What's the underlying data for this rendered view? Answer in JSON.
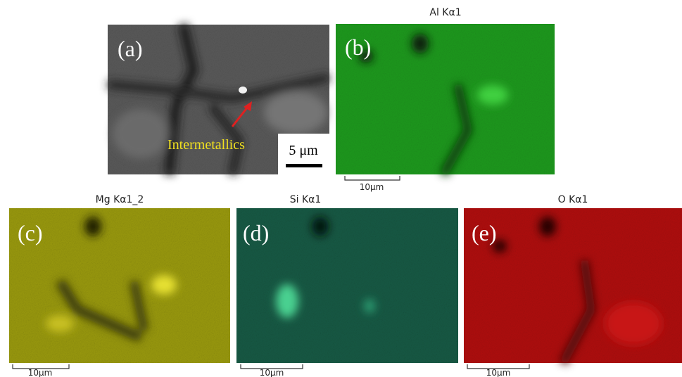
{
  "panels": [
    {
      "label": "(a)",
      "annotation": "Intermetallics",
      "scale_bar": "5 μm"
    },
    {
      "label": "(b)",
      "title": "Al Kα1",
      "scale_bar": "10μm"
    },
    {
      "label": "(c)",
      "title": "Mg Kα1_2",
      "scale_bar": "10μm"
    },
    {
      "label": "(d)",
      "title": "Si Kα1",
      "scale_bar": "10μm"
    },
    {
      "label": "(e)",
      "title": "O Kα1",
      "scale_bar": "10μm"
    }
  ]
}
